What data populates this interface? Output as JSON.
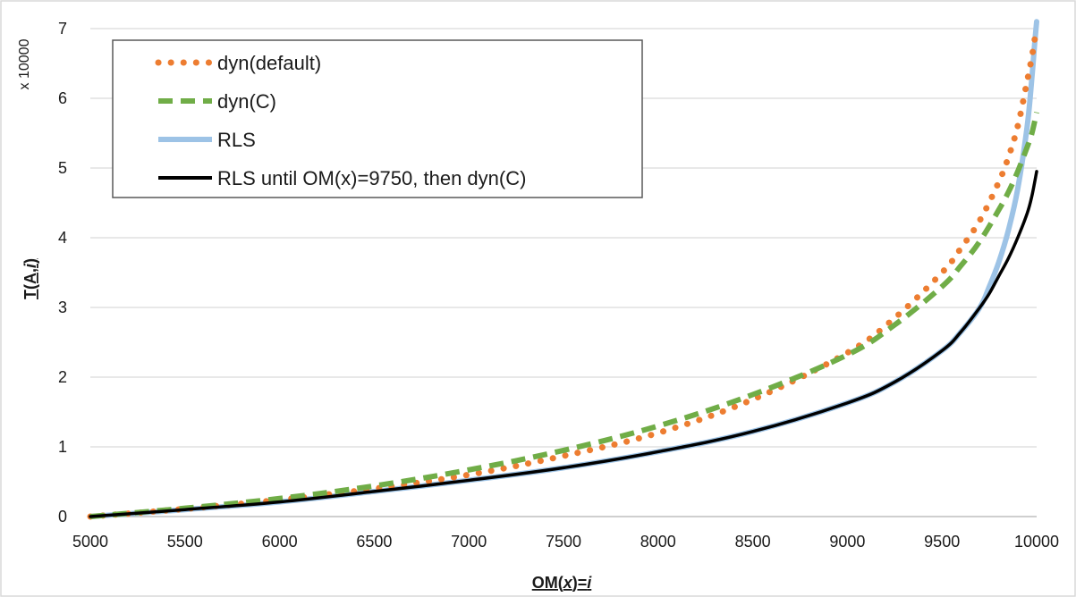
{
  "chart_data": {
    "type": "line",
    "xlabel_main": "OM(",
    "xlabel_var": "x",
    "xlabel_mid": ")=",
    "xlabel_end": "i",
    "ylabel_main": "T(A,",
    "ylabel_var": "i",
    "ylabel_end": ")",
    "ymultiplier": "x 10000",
    "xlim": [
      5000,
      10000
    ],
    "ylim": [
      0,
      7
    ],
    "xticks": [
      "5000",
      "5500",
      "6000",
      "6500",
      "7000",
      "7500",
      "8000",
      "8500",
      "9000",
      "9500",
      "10000"
    ],
    "yticks": [
      "0",
      "1",
      "2",
      "3",
      "4",
      "5",
      "6",
      "7"
    ],
    "grid": "horizontal",
    "legend_position": "top-left",
    "series": [
      {
        "name": "dyn(default)",
        "color": "#ED7D31",
        "style": "dotted",
        "x": [
          5000,
          5500,
          6000,
          6500,
          7000,
          7500,
          8000,
          8500,
          9000,
          9250,
          9500,
          9600,
          9700,
          9800,
          9850,
          9900,
          9950,
          9975,
          9990,
          10000
        ],
        "y": [
          0,
          0.11,
          0.24,
          0.4,
          0.6,
          0.87,
          1.2,
          1.68,
          2.35,
          2.85,
          3.5,
          3.85,
          4.25,
          4.8,
          5.15,
          5.6,
          6.25,
          6.6,
          6.85,
          7.0
        ]
      },
      {
        "name": "dyn(C)",
        "color": "#70AD47",
        "style": "dashed",
        "x": [
          5000,
          5500,
          6000,
          6500,
          7000,
          7500,
          8000,
          8500,
          9000,
          9250,
          9500,
          9600,
          9700,
          9800,
          9850,
          9900,
          9950,
          9975,
          10000
        ],
        "y": [
          0,
          0.12,
          0.26,
          0.44,
          0.67,
          0.95,
          1.3,
          1.75,
          2.32,
          2.75,
          3.3,
          3.6,
          3.95,
          4.4,
          4.65,
          4.95,
          5.3,
          5.5,
          5.8
        ]
      },
      {
        "name": "RLS",
        "color": "#9DC3E6",
        "style": "solid-thick",
        "x": [
          5000,
          5500,
          6000,
          6500,
          7000,
          7500,
          8000,
          8500,
          9000,
          9250,
          9500,
          9600,
          9700,
          9750,
          9800,
          9850,
          9900,
          9950,
          9975,
          9990,
          10000
        ],
        "y": [
          0,
          0.1,
          0.21,
          0.36,
          0.52,
          0.7,
          0.93,
          1.22,
          1.63,
          1.93,
          2.38,
          2.65,
          3.0,
          3.3,
          3.65,
          4.1,
          4.7,
          5.6,
          6.3,
          6.8,
          7.1
        ]
      },
      {
        "name": "RLS until OM(x)=9750, then dyn(C)",
        "color": "#000000",
        "style": "solid",
        "x": [
          5000,
          5500,
          6000,
          6500,
          7000,
          7500,
          8000,
          8500,
          9000,
          9250,
          9500,
          9600,
          9700,
          9750,
          9800,
          9850,
          9900,
          9950,
          9975,
          10000
        ],
        "y": [
          0,
          0.1,
          0.21,
          0.36,
          0.52,
          0.7,
          0.93,
          1.22,
          1.63,
          1.93,
          2.38,
          2.65,
          3.0,
          3.2,
          3.45,
          3.7,
          4.0,
          4.35,
          4.6,
          4.95
        ]
      }
    ]
  }
}
